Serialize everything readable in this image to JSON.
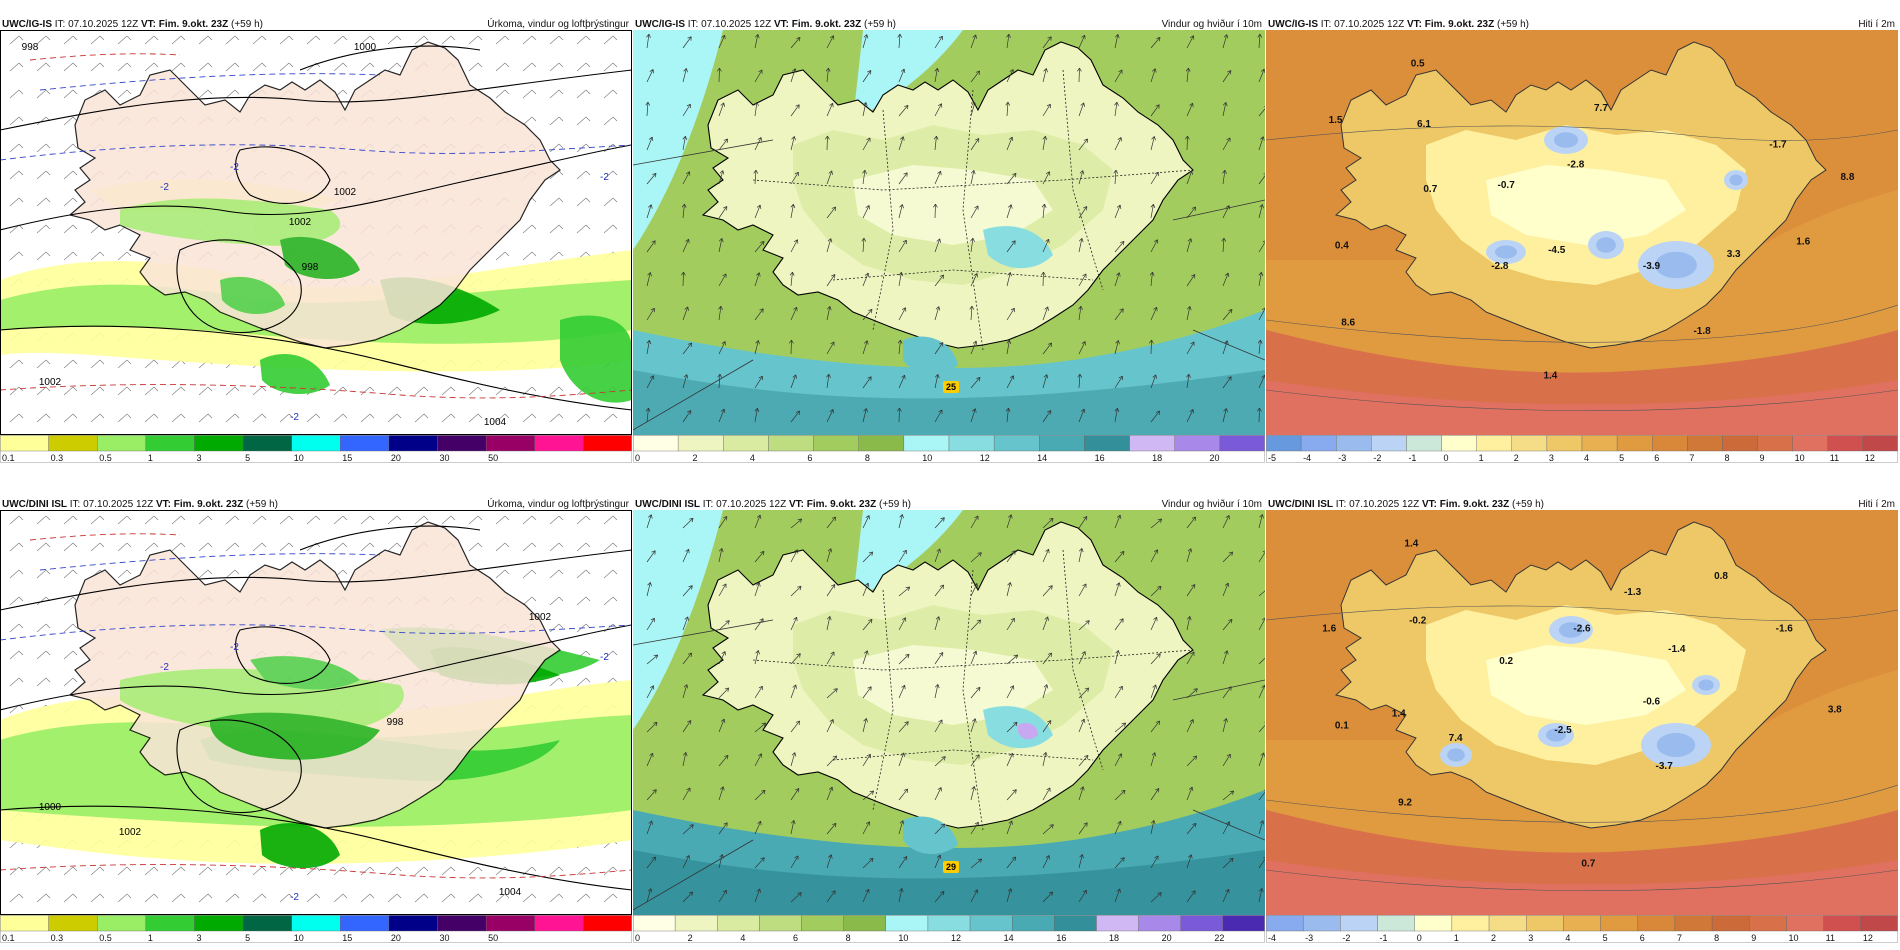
{
  "panels": [
    {
      "id": "p1",
      "model": "UWC/IG-IS",
      "it_label": "IT:",
      "it_value": "07.10.2025 12Z",
      "vt_label": "VT:",
      "vt_value": "Fim. 9.okt. 23Z",
      "lead": "(+59 h)",
      "field_title": "Úrkoma, vindur og loftþrýstingur",
      "kind": "precip",
      "legend_colors": [
        "#ffff99",
        "#cccc00",
        "#99ee66",
        "#33cc33",
        "#00aa00",
        "#006644",
        "#00ffee",
        "#3366ff",
        "#000088",
        "#440066",
        "#990066",
        "#ff1493",
        "#ff0000"
      ],
      "legend_labels": [
        "0.1",
        "0.3",
        "0.5",
        "1",
        "3",
        "5",
        "10",
        "15",
        "20",
        "30",
        "50"
      ],
      "legend_label_at": [
        0,
        1,
        2,
        3,
        4,
        5,
        6,
        7,
        8,
        9,
        10
      ],
      "isobar_labels": [
        "998",
        "1000",
        "1002",
        "1002",
        "998",
        "1002",
        "1004"
      ],
      "dashed_labels": [
        "-2",
        "-2",
        "-2",
        "-2"
      ]
    },
    {
      "id": "p2",
      "model": "UWC/IG-IS",
      "it_label": "IT:",
      "it_value": "07.10.2025 12Z",
      "vt_label": "VT:",
      "vt_value": "Fim. 9.okt. 23Z",
      "lead": "(+59 h)",
      "field_title": "Vindur og hviður í 10m",
      "kind": "wind",
      "legend_colors": [
        "#ffffe5",
        "#eef5c0",
        "#d8eba0",
        "#bedd80",
        "#a3cc5f",
        "#8aba4a",
        "#aaf5f5",
        "#88dde0",
        "#66c4cc",
        "#4aaab4",
        "#338f99",
        "#d0b8f5",
        "#a888e8",
        "#7a5ad8"
      ],
      "legend_labels": [
        "0",
        "2",
        "4",
        "6",
        "8",
        "10",
        "12",
        "14",
        "16",
        "18",
        "20"
      ],
      "legend_label_at": [
        0,
        2,
        4,
        6,
        8,
        10,
        12,
        14,
        16,
        18,
        20
      ],
      "legend_max": 22,
      "gust_label": "25"
    },
    {
      "id": "p3",
      "model": "UWC/IG-IS",
      "it_label": "IT:",
      "it_value": "07.10.2025 12Z",
      "vt_label": "VT:",
      "vt_value": "Fim. 9.okt. 23Z",
      "lead": "(+59 h)",
      "field_title": "Hiti í 2m",
      "kind": "temp",
      "legend_colors": [
        "#6699dd",
        "#88aaee",
        "#99bbee",
        "#bbd4f5",
        "#cce8d8",
        "#ffffcc",
        "#fff0a0",
        "#f5dd88",
        "#eec866",
        "#e8b050",
        "#e09a40",
        "#d88838",
        "#d07838",
        "#cc6a3a",
        "#d8704a",
        "#e07060",
        "#d05050",
        "#c04848"
      ],
      "legend_labels": [
        "-5",
        "-4",
        "-3",
        "-2",
        "-1",
        "0",
        "1",
        "2",
        "3",
        "4",
        "5",
        "6",
        "7",
        "8",
        "9",
        "10",
        "11",
        "12"
      ],
      "legend_label_at": [
        0,
        1,
        2,
        3,
        4,
        5,
        6,
        7,
        8,
        9,
        10,
        11,
        12,
        13,
        14,
        15,
        16,
        17
      ],
      "values": [
        {
          "t": "0.5",
          "x": 0.24,
          "y": 0.09
        },
        {
          "t": "1.5",
          "x": 0.11,
          "y": 0.23
        },
        {
          "t": "6.1",
          "x": 0.25,
          "y": 0.24
        },
        {
          "t": "7.7",
          "x": 0.53,
          "y": 0.2
        },
        {
          "t": "-2.8",
          "x": 0.49,
          "y": 0.34
        },
        {
          "t": "-0.7",
          "x": 0.38,
          "y": 0.39
        },
        {
          "t": "0.7",
          "x": 0.26,
          "y": 0.4
        },
        {
          "t": "-1.7",
          "x": 0.81,
          "y": 0.29
        },
        {
          "t": "8.8",
          "x": 0.92,
          "y": 0.37
        },
        {
          "t": "0.4",
          "x": 0.12,
          "y": 0.54
        },
        {
          "t": "-2.8",
          "x": 0.37,
          "y": 0.59
        },
        {
          "t": "-4.5",
          "x": 0.46,
          "y": 0.55
        },
        {
          "t": "-3.9",
          "x": 0.61,
          "y": 0.59
        },
        {
          "t": "3.3",
          "x": 0.74,
          "y": 0.56
        },
        {
          "t": "1.6",
          "x": 0.85,
          "y": 0.53
        },
        {
          "t": "8.6",
          "x": 0.13,
          "y": 0.73
        },
        {
          "t": "-1.8",
          "x": 0.69,
          "y": 0.75
        },
        {
          "t": "1.4",
          "x": 0.45,
          "y": 0.86
        }
      ]
    },
    {
      "id": "p4",
      "model": "UWC/DINI ISL",
      "it_label": "IT:",
      "it_value": "07.10.2025 12Z",
      "vt_label": "VT:",
      "vt_value": "Fim. 9.okt. 23Z",
      "lead": "(+59 h)",
      "field_title": "Úrkoma, vindur og loftþrýstingur",
      "kind": "precip",
      "legend_colors": [
        "#ffff99",
        "#cccc00",
        "#99ee66",
        "#33cc33",
        "#00aa00",
        "#006644",
        "#00ffee",
        "#3366ff",
        "#000088",
        "#440066",
        "#990066",
        "#ff1493",
        "#ff0000"
      ],
      "legend_labels": [
        "0.1",
        "0.3",
        "0.5",
        "1",
        "3",
        "5",
        "10",
        "15",
        "20",
        "30",
        "50"
      ],
      "legend_label_at": [
        0,
        1,
        2,
        3,
        4,
        5,
        6,
        7,
        8,
        9,
        10
      ],
      "isobar_labels": [
        "1002",
        "998",
        "1000",
        "1002",
        "1004"
      ],
      "dashed_labels": [
        "-2",
        "-2",
        "-2",
        "-2"
      ]
    },
    {
      "id": "p5",
      "model": "UWC/DINI ISL",
      "it_label": "IT:",
      "it_value": "07.10.2025 12Z",
      "vt_label": "VT:",
      "vt_value": "Fim. 9.okt. 23Z",
      "lead": "(+59 h)",
      "field_title": "Vindur og hviður í 10m",
      "kind": "wind",
      "legend_colors": [
        "#ffffe5",
        "#eef5c0",
        "#d8eba0",
        "#bedd80",
        "#a3cc5f",
        "#8aba4a",
        "#aaf5f5",
        "#88dde0",
        "#66c4cc",
        "#4aaab4",
        "#338f99",
        "#d0b8f5",
        "#a888e8",
        "#7a5ad8",
        "#4a2ab0"
      ],
      "legend_labels": [
        "0",
        "2",
        "4",
        "6",
        "8",
        "10",
        "12",
        "14",
        "16",
        "18",
        "20",
        "22"
      ],
      "legend_label_at": [
        0,
        2,
        4,
        6,
        8,
        10,
        12,
        14,
        16,
        18,
        20,
        22
      ],
      "legend_max": 24,
      "gust_label": "29"
    },
    {
      "id": "p6",
      "model": "UWC/DINI ISL",
      "it_label": "IT:",
      "it_value": "07.10.2025 12Z",
      "vt_label": "VT:",
      "vt_value": "Fim. 9.okt. 23Z",
      "lead": "(+59 h)",
      "field_title": "Hiti í 2m",
      "kind": "temp",
      "legend_colors": [
        "#88aaee",
        "#99bbee",
        "#bbd4f5",
        "#cce8d8",
        "#ffffcc",
        "#fff0a0",
        "#f5dd88",
        "#eec866",
        "#e8b050",
        "#e09a40",
        "#d88838",
        "#d07838",
        "#cc6a3a",
        "#d8704a",
        "#e07060",
        "#d05050",
        "#c04848"
      ],
      "legend_labels": [
        "-4",
        "-3",
        "-2",
        "-1",
        "0",
        "1",
        "2",
        "3",
        "4",
        "5",
        "6",
        "7",
        "8",
        "9",
        "10",
        "11",
        "12"
      ],
      "legend_label_at": [
        0,
        1,
        2,
        3,
        4,
        5,
        6,
        7,
        8,
        9,
        10,
        11,
        12,
        13,
        14,
        15,
        16
      ],
      "values": [
        {
          "t": "1.4",
          "x": 0.23,
          "y": 0.09
        },
        {
          "t": "1.6",
          "x": 0.1,
          "y": 0.3
        },
        {
          "t": "-0.2",
          "x": 0.24,
          "y": 0.28
        },
        {
          "t": "-1.3",
          "x": 0.58,
          "y": 0.21
        },
        {
          "t": "0.8",
          "x": 0.72,
          "y": 0.17
        },
        {
          "t": "-2.6",
          "x": 0.5,
          "y": 0.3
        },
        {
          "t": "-1.6",
          "x": 0.82,
          "y": 0.3
        },
        {
          "t": "0.2",
          "x": 0.38,
          "y": 0.38
        },
        {
          "t": "-1.4",
          "x": 0.65,
          "y": 0.35
        },
        {
          "t": "-0.6",
          "x": 0.61,
          "y": 0.48
        },
        {
          "t": "3.8",
          "x": 0.9,
          "y": 0.5
        },
        {
          "t": "0.1",
          "x": 0.12,
          "y": 0.54
        },
        {
          "t": "1.4",
          "x": 0.21,
          "y": 0.51
        },
        {
          "t": "7.4",
          "x": 0.3,
          "y": 0.57
        },
        {
          "t": "-2.5",
          "x": 0.47,
          "y": 0.55
        },
        {
          "t": "-3.7",
          "x": 0.63,
          "y": 0.64
        },
        {
          "t": "9.2",
          "x": 0.22,
          "y": 0.73
        },
        {
          "t": "0.7",
          "x": 0.51,
          "y": 0.88
        }
      ]
    }
  ]
}
